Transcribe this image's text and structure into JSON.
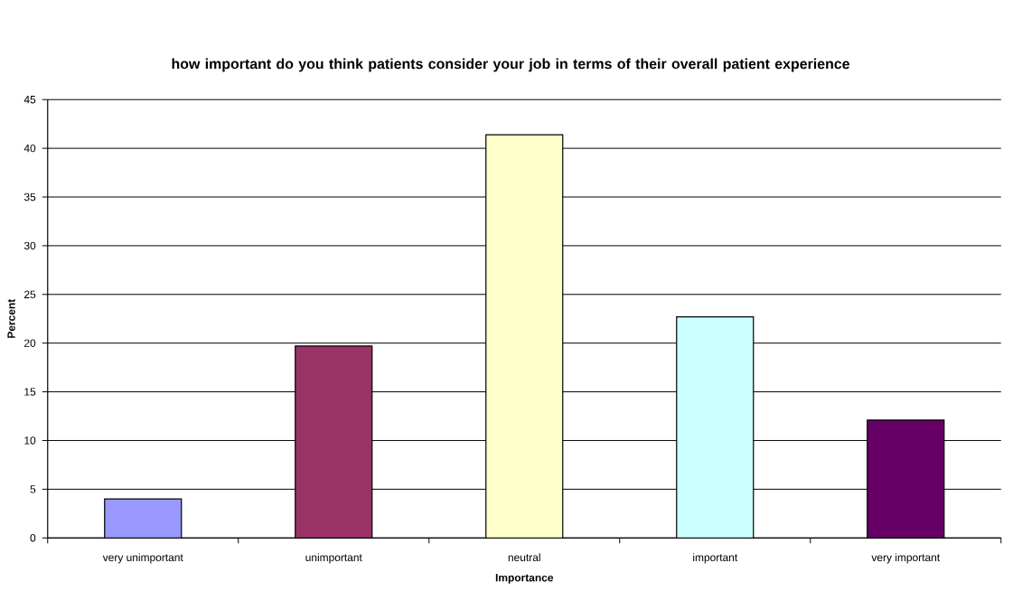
{
  "chart_data": {
    "type": "bar",
    "title": "how important do you think patients consider your job in terms of their overall patient experience",
    "xlabel": "Importance",
    "ylabel": "Percent",
    "categories": [
      "very unimportant",
      "unimportant",
      "neutral",
      "important",
      "very important"
    ],
    "values": [
      4.0,
      19.7,
      41.4,
      22.7,
      12.1
    ],
    "colors": [
      "#9999ff",
      "#993366",
      "#ffffcc",
      "#ccffff",
      "#660066"
    ],
    "ylim": [
      0,
      45
    ],
    "yticks": [
      0,
      5,
      10,
      15,
      20,
      25,
      30,
      35,
      40,
      45
    ],
    "grid": "y"
  }
}
